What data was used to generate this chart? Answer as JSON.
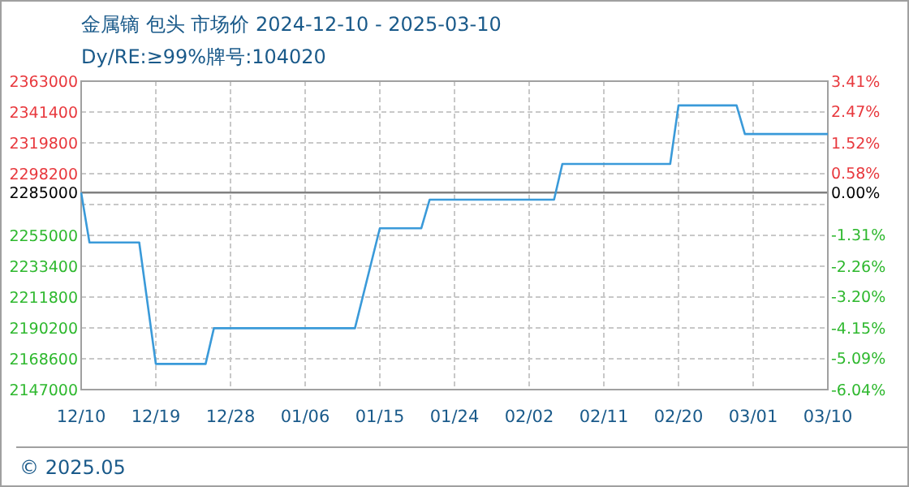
{
  "chart_data": {
    "type": "line",
    "title": "金属镝 包头 市场价 2024-12-10 - 2025-03-10",
    "subtitle": "Dy/RE:≥99%牌号:104020",
    "x": [
      "2024-12-10",
      "2024-12-11",
      "2024-12-17",
      "2024-12-19",
      "2024-12-25",
      "2024-12-26",
      "2025-01-12",
      "2025-01-15",
      "2025-01-20",
      "2025-01-21",
      "2025-02-05",
      "2025-02-06",
      "2025-02-19",
      "2025-02-20",
      "2025-02-27",
      "2025-02-28",
      "2025-03-10"
    ],
    "series": [
      {
        "color": "#3a9ad9",
        "values": [
          2285000,
          2250000,
          2250000,
          2165000,
          2165000,
          2190000,
          2190000,
          2260000,
          2260000,
          2280000,
          2280000,
          2305000,
          2305000,
          2346000,
          2346000,
          2326000,
          2326000
        ]
      }
    ],
    "xlim": [
      "2024-12-10",
      "2025-03-10"
    ],
    "xticks": [
      {
        "value": "2024-12-10",
        "label": "12/10"
      },
      {
        "value": "2024-12-19",
        "label": "12/19"
      },
      {
        "value": "2024-12-28",
        "label": "12/28"
      },
      {
        "value": "2025-01-06",
        "label": "01/06"
      },
      {
        "value": "2025-01-15",
        "label": "01/15"
      },
      {
        "value": "2025-01-24",
        "label": "01/24"
      },
      {
        "value": "2025-02-02",
        "label": "02/02"
      },
      {
        "value": "2025-02-11",
        "label": "02/11"
      },
      {
        "value": "2025-02-20",
        "label": "02/20"
      },
      {
        "value": "2025-03-01",
        "label": "03/01"
      },
      {
        "value": "2025-03-10",
        "label": "03/10"
      }
    ],
    "ylim": [
      2147000,
      2363000
    ],
    "yticks": [
      2147000,
      2168600,
      2190200,
      2211800,
      2233400,
      2255000,
      {
        "value": 2276600,
        "label": null
      },
      2285000,
      2298200,
      2319800,
      2341400,
      2363000
    ],
    "y2lim": [
      -6.04,
      3.41
    ],
    "y2ticks": [
      {
        "value": -6.04,
        "label": "-6.04%"
      },
      {
        "value": -5.09,
        "label": "-5.09%"
      },
      {
        "value": -4.15,
        "label": "-4.15%"
      },
      {
        "value": -3.2,
        "label": "-3.20%"
      },
      {
        "value": -2.26,
        "label": "-2.26%"
      },
      {
        "value": -1.31,
        "label": "-1.31%"
      },
      {
        "value": 0,
        "label": "0.00%"
      },
      {
        "value": 0.58,
        "label": "0.58%"
      },
      {
        "value": 1.52,
        "label": "1.52%"
      },
      {
        "value": 2.47,
        "label": "2.47%"
      },
      {
        "value": 3.41,
        "label": "3.41%"
      }
    ],
    "ref_lines": [
      {
        "axis": "y",
        "value": 2285000,
        "color": "#808080"
      }
    ],
    "grid": true,
    "marker": "none",
    "line_style": "solid",
    "annotations": [
      "© 2025.05"
    ]
  }
}
